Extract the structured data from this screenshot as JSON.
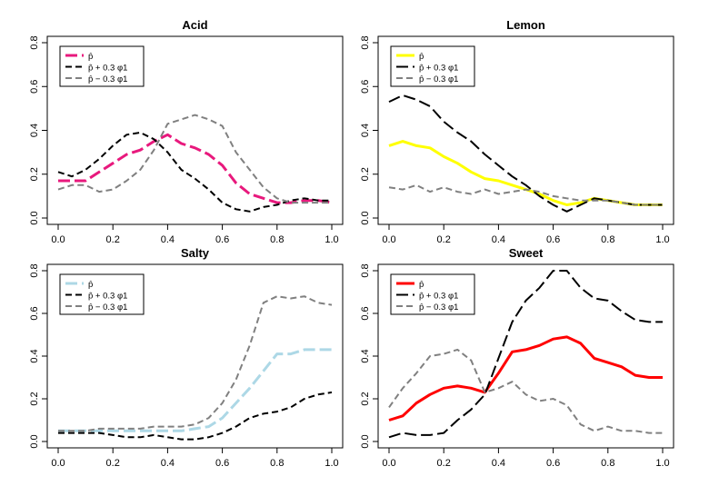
{
  "chart_data": [
    {
      "type": "line",
      "title": "Acid",
      "xlabel": "",
      "ylabel": "",
      "xlim": [
        0,
        1
      ],
      "ylim": [
        0,
        0.8
      ],
      "x_ticks": [
        "0.0",
        "0.2",
        "0.4",
        "0.6",
        "0.8",
        "1.0"
      ],
      "y_ticks": [
        "0.0",
        "0.2",
        "0.4",
        "0.6",
        "0.8"
      ],
      "legend_position": "top-left",
      "series": [
        {
          "name": "p̂",
          "color": "#e8197d",
          "dash": "longdash",
          "x": [
            0,
            0.05,
            0.1,
            0.15,
            0.2,
            0.25,
            0.3,
            0.35,
            0.4,
            0.45,
            0.5,
            0.55,
            0.6,
            0.65,
            0.7,
            0.75,
            0.8,
            0.85,
            0.9,
            0.95,
            1.0
          ],
          "y": [
            0.17,
            0.17,
            0.17,
            0.21,
            0.25,
            0.29,
            0.31,
            0.35,
            0.38,
            0.34,
            0.32,
            0.29,
            0.24,
            0.16,
            0.11,
            0.09,
            0.07,
            0.07,
            0.08,
            0.08,
            0.07
          ]
        },
        {
          "name": "p̂ + 0.3 φ1",
          "color": "#000000",
          "dash": "dashed",
          "x": [
            0,
            0.05,
            0.1,
            0.15,
            0.2,
            0.25,
            0.3,
            0.35,
            0.4,
            0.45,
            0.5,
            0.55,
            0.6,
            0.65,
            0.7,
            0.75,
            0.8,
            0.85,
            0.9,
            0.95,
            1.0
          ],
          "y": [
            0.21,
            0.19,
            0.22,
            0.27,
            0.33,
            0.38,
            0.39,
            0.36,
            0.3,
            0.22,
            0.18,
            0.13,
            0.07,
            0.04,
            0.03,
            0.05,
            0.06,
            0.08,
            0.09,
            0.08,
            0.08
          ]
        },
        {
          "name": "p̂ − 0.3 φ1",
          "color": "#808080",
          "dash": "dashed",
          "x": [
            0,
            0.05,
            0.1,
            0.15,
            0.2,
            0.25,
            0.3,
            0.35,
            0.4,
            0.45,
            0.5,
            0.55,
            0.6,
            0.65,
            0.7,
            0.75,
            0.8,
            0.85,
            0.9,
            0.95,
            1.0
          ],
          "y": [
            0.13,
            0.15,
            0.15,
            0.12,
            0.13,
            0.17,
            0.22,
            0.31,
            0.43,
            0.45,
            0.47,
            0.45,
            0.42,
            0.3,
            0.22,
            0.14,
            0.09,
            0.07,
            0.07,
            0.07,
            0.07
          ]
        }
      ]
    },
    {
      "type": "line",
      "title": "Lemon",
      "xlabel": "",
      "ylabel": "",
      "xlim": [
        0,
        1
      ],
      "ylim": [
        0,
        0.8
      ],
      "x_ticks": [
        "0.0",
        "0.2",
        "0.4",
        "0.6",
        "0.8",
        "1.0"
      ],
      "y_ticks": [
        "0.0",
        "0.2",
        "0.4",
        "0.6",
        "0.8"
      ],
      "legend_position": "top-left",
      "series": [
        {
          "name": "p̂",
          "color": "#ffff00",
          "dash": "solid",
          "x": [
            0,
            0.05,
            0.1,
            0.15,
            0.2,
            0.25,
            0.3,
            0.35,
            0.4,
            0.45,
            0.5,
            0.55,
            0.6,
            0.65,
            0.7,
            0.75,
            0.8,
            0.85,
            0.9,
            0.95,
            1.0
          ],
          "y": [
            0.33,
            0.35,
            0.33,
            0.32,
            0.28,
            0.25,
            0.21,
            0.18,
            0.17,
            0.15,
            0.13,
            0.11,
            0.08,
            0.06,
            0.07,
            0.09,
            0.08,
            0.07,
            0.06,
            0.06,
            0.06
          ]
        },
        {
          "name": "p̂ + 0.3 φ1",
          "color": "#000000",
          "dash": "longdash",
          "x": [
            0,
            0.05,
            0.1,
            0.15,
            0.2,
            0.25,
            0.3,
            0.35,
            0.4,
            0.45,
            0.5,
            0.55,
            0.6,
            0.65,
            0.7,
            0.75,
            0.8,
            0.85,
            0.9,
            0.95,
            1.0
          ],
          "y": [
            0.53,
            0.56,
            0.54,
            0.51,
            0.44,
            0.39,
            0.35,
            0.29,
            0.24,
            0.19,
            0.15,
            0.1,
            0.06,
            0.03,
            0.06,
            0.09,
            0.08,
            0.07,
            0.06,
            0.06,
            0.06
          ]
        },
        {
          "name": "p̂ − 0.3 φ1",
          "color": "#808080",
          "dash": "dashed",
          "x": [
            0,
            0.05,
            0.1,
            0.15,
            0.2,
            0.25,
            0.3,
            0.35,
            0.4,
            0.45,
            0.5,
            0.55,
            0.6,
            0.65,
            0.7,
            0.75,
            0.8,
            0.85,
            0.9,
            0.95,
            1.0
          ],
          "y": [
            0.14,
            0.13,
            0.15,
            0.12,
            0.14,
            0.12,
            0.11,
            0.13,
            0.11,
            0.12,
            0.13,
            0.12,
            0.1,
            0.09,
            0.08,
            0.08,
            0.08,
            0.07,
            0.06,
            0.06,
            0.06
          ]
        }
      ]
    },
    {
      "type": "line",
      "title": "Salty",
      "xlabel": "",
      "ylabel": "",
      "xlim": [
        0,
        1
      ],
      "ylim": [
        0,
        0.8
      ],
      "x_ticks": [
        "0.0",
        "0.2",
        "0.4",
        "0.6",
        "0.8",
        "1.0"
      ],
      "y_ticks": [
        "0.0",
        "0.2",
        "0.4",
        "0.6",
        "0.8"
      ],
      "legend_position": "top-left",
      "series": [
        {
          "name": "p̂",
          "color": "#add8e6",
          "dash": "longdash",
          "x": [
            0,
            0.05,
            0.1,
            0.15,
            0.2,
            0.25,
            0.3,
            0.35,
            0.4,
            0.45,
            0.5,
            0.55,
            0.6,
            0.65,
            0.7,
            0.75,
            0.8,
            0.85,
            0.9,
            0.95,
            1.0
          ],
          "y": [
            0.05,
            0.05,
            0.05,
            0.05,
            0.05,
            0.05,
            0.05,
            0.05,
            0.05,
            0.05,
            0.06,
            0.07,
            0.11,
            0.18,
            0.25,
            0.33,
            0.41,
            0.41,
            0.43,
            0.43,
            0.43
          ]
        },
        {
          "name": "p̂ + 0.3 φ1",
          "color": "#000000",
          "dash": "dashed",
          "x": [
            0,
            0.05,
            0.1,
            0.15,
            0.2,
            0.25,
            0.3,
            0.35,
            0.4,
            0.45,
            0.5,
            0.55,
            0.6,
            0.65,
            0.7,
            0.75,
            0.8,
            0.85,
            0.9,
            0.95,
            1.0
          ],
          "y": [
            0.04,
            0.04,
            0.04,
            0.04,
            0.03,
            0.02,
            0.02,
            0.03,
            0.02,
            0.01,
            0.01,
            0.02,
            0.04,
            0.07,
            0.11,
            0.13,
            0.14,
            0.16,
            0.2,
            0.22,
            0.23
          ]
        },
        {
          "name": "p̂ − 0.3 φ1",
          "color": "#808080",
          "dash": "dashed",
          "x": [
            0,
            0.05,
            0.1,
            0.15,
            0.2,
            0.25,
            0.3,
            0.35,
            0.4,
            0.45,
            0.5,
            0.55,
            0.6,
            0.65,
            0.7,
            0.75,
            0.8,
            0.85,
            0.9,
            0.95,
            1.0
          ],
          "y": [
            0.05,
            0.05,
            0.05,
            0.06,
            0.06,
            0.06,
            0.06,
            0.07,
            0.07,
            0.07,
            0.08,
            0.11,
            0.18,
            0.29,
            0.45,
            0.65,
            0.68,
            0.67,
            0.68,
            0.65,
            0.64
          ]
        }
      ]
    },
    {
      "type": "line",
      "title": "Sweet",
      "xlabel": "",
      "ylabel": "",
      "xlim": [
        0,
        1
      ],
      "ylim": [
        0,
        0.8
      ],
      "x_ticks": [
        "0.0",
        "0.2",
        "0.4",
        "0.6",
        "0.8",
        "1.0"
      ],
      "y_ticks": [
        "0.0",
        "0.2",
        "0.4",
        "0.6",
        "0.8"
      ],
      "legend_position": "top-left",
      "series": [
        {
          "name": "p̂",
          "color": "#ff0000",
          "dash": "solid",
          "x": [
            0,
            0.05,
            0.1,
            0.15,
            0.2,
            0.25,
            0.3,
            0.35,
            0.4,
            0.45,
            0.5,
            0.55,
            0.6,
            0.65,
            0.7,
            0.75,
            0.8,
            0.85,
            0.9,
            0.95,
            1.0
          ],
          "y": [
            0.1,
            0.12,
            0.18,
            0.22,
            0.25,
            0.26,
            0.25,
            0.23,
            0.32,
            0.42,
            0.43,
            0.45,
            0.48,
            0.49,
            0.46,
            0.39,
            0.37,
            0.35,
            0.31,
            0.3,
            0.3
          ]
        },
        {
          "name": "p̂ + 0.3 φ1",
          "color": "#000000",
          "dash": "longdash",
          "x": [
            0,
            0.05,
            0.1,
            0.15,
            0.2,
            0.25,
            0.3,
            0.35,
            0.4,
            0.45,
            0.5,
            0.55,
            0.6,
            0.65,
            0.7,
            0.75,
            0.8,
            0.85,
            0.9,
            0.95,
            1.0
          ],
          "y": [
            0.02,
            0.04,
            0.03,
            0.03,
            0.04,
            0.1,
            0.15,
            0.22,
            0.39,
            0.56,
            0.66,
            0.72,
            0.8,
            0.8,
            0.72,
            0.67,
            0.66,
            0.61,
            0.57,
            0.56,
            0.56
          ]
        },
        {
          "name": "p̂ − 0.3 φ1",
          "color": "#808080",
          "dash": "dashed",
          "x": [
            0,
            0.05,
            0.1,
            0.15,
            0.2,
            0.25,
            0.3,
            0.35,
            0.4,
            0.45,
            0.5,
            0.55,
            0.6,
            0.65,
            0.7,
            0.75,
            0.8,
            0.85,
            0.9,
            0.95,
            1.0
          ],
          "y": [
            0.16,
            0.25,
            0.32,
            0.4,
            0.41,
            0.43,
            0.38,
            0.23,
            0.25,
            0.28,
            0.22,
            0.19,
            0.2,
            0.17,
            0.08,
            0.05,
            0.07,
            0.05,
            0.05,
            0.04,
            0.04
          ]
        }
      ]
    }
  ]
}
